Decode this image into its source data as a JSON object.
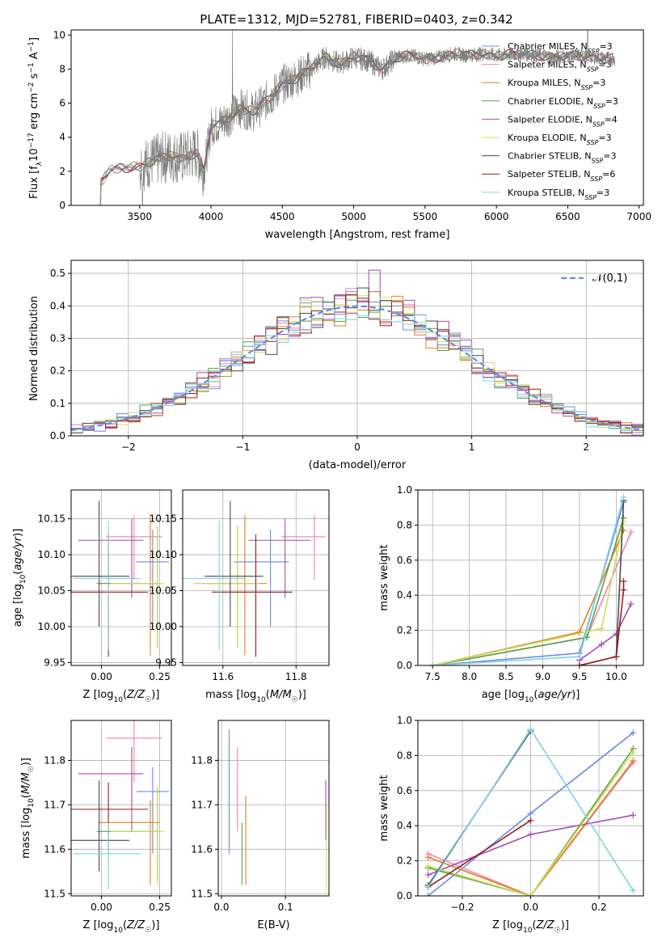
{
  "title": "PLATE=1312, MJD=52781, FIBERID=0403, z=0.342",
  "colors": [
    "#6a8be0",
    "#ef86b3",
    "#e0801e",
    "#5aa04b",
    "#a54bb5",
    "#d4dc57",
    "#4a4a4a",
    "#9a1b1b",
    "#80d2e6"
  ],
  "legend": [
    {
      "label": "Chabrier MILES, N",
      "sub": "SSP",
      "tail": "=3"
    },
    {
      "label": "Salpeter MILES, N",
      "sub": "SSP",
      "tail": "=3"
    },
    {
      "label": "Kroupa MILES, N",
      "sub": "SSP",
      "tail": "=3"
    },
    {
      "label": "Chabrier ELODIE, N",
      "sub": "SSP",
      "tail": "=3"
    },
    {
      "label": "Salpeter ELODIE, N",
      "sub": "SSP",
      "tail": "=4"
    },
    {
      "label": "Kroupa ELODIE, N",
      "sub": "SSP",
      "tail": "=3"
    },
    {
      "label": "Chabrier STELIB, N",
      "sub": "SSP",
      "tail": "=3"
    },
    {
      "label": "Salpeter STELIB, N",
      "sub": "SSP",
      "tail": "=6"
    },
    {
      "label": "Kroupa STELIB, N",
      "sub": "SSP",
      "tail": "=3"
    }
  ],
  "chart_data": [
    {
      "type": "line",
      "name": "spectrum",
      "xlabel": "wavelength [Angstrom, rest frame]",
      "ylabel": "Flux [f_λ 10^-17 erg cm^-2 s^-1 A^-1]",
      "xlim": [
        3020,
        7030
      ],
      "ylim": [
        0,
        10.3
      ],
      "xticks": [
        3500,
        4000,
        4500,
        5000,
        5500,
        6000,
        6500,
        7000
      ],
      "yticks": [
        0,
        2,
        4,
        6,
        8,
        10
      ],
      "spectrum_key": [
        [
          3230,
          1.4
        ],
        [
          3300,
          2.1
        ],
        [
          3400,
          2.2
        ],
        [
          3500,
          2.3
        ],
        [
          3600,
          2.6
        ],
        [
          3700,
          2.9
        ],
        [
          3800,
          2.8
        ],
        [
          3900,
          3.1
        ],
        [
          3950,
          2.0
        ],
        [
          4000,
          4.6
        ],
        [
          4100,
          5.0
        ],
        [
          4200,
          5.7
        ],
        [
          4300,
          5.5
        ],
        [
          4400,
          6.2
        ],
        [
          4500,
          7.1
        ],
        [
          4600,
          7.5
        ],
        [
          4700,
          8.0
        ],
        [
          4800,
          8.7
        ],
        [
          4900,
          8.3
        ],
        [
          5000,
          8.7
        ],
        [
          5100,
          8.5
        ],
        [
          5200,
          8.0
        ],
        [
          5300,
          8.7
        ],
        [
          5400,
          8.8
        ],
        [
          5500,
          8.6
        ],
        [
          5600,
          8.7
        ],
        [
          5700,
          8.9
        ],
        [
          5800,
          8.8
        ],
        [
          5900,
          8.9
        ],
        [
          6000,
          8.8
        ],
        [
          6200,
          8.9
        ],
        [
          6400,
          8.7
        ],
        [
          6600,
          8.8
        ],
        [
          6800,
          8.6
        ]
      ],
      "legend_placement": "upper-right",
      "grid": false
    },
    {
      "type": "histogram",
      "name": "residuals",
      "xlabel": "(data-model)/error",
      "ylabel": "Normed distribution",
      "xlim": [
        -2.5,
        2.5
      ],
      "ylim": [
        0,
        0.54
      ],
      "xticks": [
        -2,
        -1,
        0,
        1,
        2
      ],
      "yticks": [
        0.0,
        0.1,
        0.2,
        0.3,
        0.4,
        0.5
      ],
      "reference": "𝒩(0,1)",
      "bin_width": 0.1,
      "grid": true,
      "legend_placement": "upper-right"
    },
    {
      "type": "scatter",
      "name": "age-vs-Z",
      "xlabel": "Z [log10(Z/Z☉)]",
      "ylabel": "age  [log10(age/yr)]",
      "xlim": [
        -0.13,
        0.3
      ],
      "ylim": [
        9.946,
        10.19
      ],
      "xticks": [
        0.0,
        0.25
      ],
      "yticks": [
        9.95,
        10.0,
        10.05,
        10.1,
        10.15
      ],
      "points": [
        {
          "x": 0.22,
          "y": 10.09,
          "xerr": [
            0.07,
            0.07
          ],
          "yerr": [
            0.09,
            0.045
          ]
        },
        {
          "x": 0.14,
          "y": 10.125,
          "xerr": [
            0.12,
            0.12
          ],
          "yerr": [
            0.06,
            0.03
          ]
        },
        {
          "x": 0.21,
          "y": 10.06,
          "xerr": [
            0.22,
            0.04
          ],
          "yerr": [
            0.1,
            0.095
          ]
        },
        {
          "x": 0.24,
          "y": 10.06,
          "xerr": [
            0.26,
            0.01
          ],
          "yerr": [
            0.09,
            0.08
          ]
        },
        {
          "x": 0.13,
          "y": 10.12,
          "xerr": [
            0.23,
            0.05
          ],
          "yerr": [
            0.08,
            0.03
          ]
        },
        {
          "x": 0.24,
          "y": 10.06,
          "xerr": [
            0.2,
            0.03
          ],
          "yerr": [
            0.09,
            0.08
          ]
        },
        {
          "x": -0.01,
          "y": 10.07,
          "xerr": [
            0.13,
            0.13
          ],
          "yerr": [
            0.07,
            0.105
          ]
        },
        {
          "x": 0.03,
          "y": 10.048,
          "xerr": [
            0.17,
            0.17
          ],
          "yerr": [
            0.09,
            0.08
          ]
        },
        {
          "x": 0.03,
          "y": 10.067,
          "xerr": [
            0.15,
            0.14
          ],
          "yerr": [
            0.1,
            0.08
          ]
        }
      ],
      "grid": true
    },
    {
      "type": "scatter",
      "name": "age-vs-mass",
      "xlabel": "mass [log10(M/M☉)]",
      "ylabel": "",
      "xlim": [
        11.49,
        11.89
      ],
      "ylim": [
        9.946,
        10.19
      ],
      "xticks": [
        11.6,
        11.8
      ],
      "yticks": [
        9.95,
        10.0,
        10.05,
        10.1,
        10.15
      ],
      "points": [
        {
          "x": 11.73,
          "y": 10.09,
          "xerr": [
            0.1,
            0.05
          ],
          "yerr": [
            0.09,
            0.045
          ]
        },
        {
          "x": 11.85,
          "y": 10.125,
          "xerr": [
            0.09,
            0.03
          ],
          "yerr": [
            0.06,
            0.03
          ]
        },
        {
          "x": 11.66,
          "y": 10.06,
          "xerr": [
            0.11,
            0.06
          ],
          "yerr": [
            0.1,
            0.095
          ]
        },
        {
          "x": 11.64,
          "y": 10.06,
          "xerr": [
            0.12,
            0.04
          ],
          "yerr": [
            0.09,
            0.08
          ]
        },
        {
          "x": 11.77,
          "y": 10.12,
          "xerr": [
            0.1,
            0.07
          ],
          "yerr": [
            0.08,
            0.03
          ]
        },
        {
          "x": 11.64,
          "y": 10.06,
          "xerr": [
            0.12,
            0.06
          ],
          "yerr": [
            0.09,
            0.08
          ]
        },
        {
          "x": 11.62,
          "y": 10.07,
          "xerr": [
            0.07,
            0.09
          ],
          "yerr": [
            0.07,
            0.105
          ]
        },
        {
          "x": 11.69,
          "y": 10.048,
          "xerr": [
            0.12,
            0.1
          ],
          "yerr": [
            0.09,
            0.08
          ]
        },
        {
          "x": 11.59,
          "y": 10.067,
          "xerr": [
            0.1,
            0.07
          ],
          "yerr": [
            0.1,
            0.08
          ]
        }
      ],
      "grid": true
    },
    {
      "type": "line",
      "name": "mass-weight-vs-age",
      "xlabel": "age  [log10(age/yr)]",
      "ylabel": "mass weight",
      "xlim": [
        7.3,
        10.37
      ],
      "ylim": [
        0,
        1
      ],
      "xticks": [
        7.5,
        8.0,
        8.5,
        9.0,
        9.5,
        10.0
      ],
      "yticks": [
        0.0,
        0.2,
        0.4,
        0.6,
        0.8,
        1.0
      ],
      "series": [
        {
          "x": [
            7.5,
            9.5,
            10.1
          ],
          "y": [
            0.0,
            0.07,
            0.93
          ]
        },
        {
          "x": [
            7.5,
            9.6,
            10.2
          ],
          "y": [
            0.0,
            0.16,
            0.76
          ]
        },
        {
          "x": [
            7.5,
            9.5,
            10.1
          ],
          "y": [
            0.0,
            0.19,
            0.77
          ]
        },
        {
          "x": [
            7.5,
            9.6,
            10.1
          ],
          "y": [
            0.0,
            0.16,
            0.84
          ]
        },
        {
          "x": [
            9.5,
            9.8,
            10.0,
            10.2
          ],
          "y": [
            0.03,
            0.12,
            0.18,
            0.35
          ]
        },
        {
          "x": [
            7.5,
            9.8,
            10.1
          ],
          "y": [
            0.0,
            0.21,
            0.82
          ]
        },
        {
          "x": [
            9.5,
            10.0,
            10.1
          ],
          "y": [
            0.0,
            0.05,
            0.94
          ]
        },
        {
          "x": [
            9.5,
            10.0,
            10.1,
            10.1
          ],
          "y": [
            0.0,
            0.05,
            0.43,
            0.48
          ]
        },
        {
          "x": [
            7.5,
            9.5,
            10.1
          ],
          "y": [
            0.0,
            0.05,
            0.96
          ]
        }
      ],
      "grid": true
    },
    {
      "type": "scatter",
      "name": "mass-vs-Z",
      "xlabel": "Z [log10(Z/Z☉)]",
      "ylabel": "mass [log10(M/M☉)]",
      "xlim": [
        -0.13,
        0.3
      ],
      "ylim": [
        11.495,
        11.89
      ],
      "xticks": [
        0.0,
        0.25
      ],
      "yticks": [
        11.5,
        11.6,
        11.7,
        11.8
      ],
      "points": [
        {
          "x": 0.22,
          "y": 11.73,
          "xerr": [
            0.07,
            0.07
          ],
          "yerr": [
            0.14,
            0.055
          ]
        },
        {
          "x": 0.14,
          "y": 11.85,
          "xerr": [
            0.12,
            0.12
          ],
          "yerr": [
            0.1,
            0.04
          ]
        },
        {
          "x": 0.21,
          "y": 11.66,
          "xerr": [
            0.22,
            0.04
          ],
          "yerr": [
            0.14,
            0.05
          ]
        },
        {
          "x": 0.24,
          "y": 11.64,
          "xerr": [
            0.26,
            0.01
          ],
          "yerr": [
            0.11,
            0.1
          ]
        },
        {
          "x": 0.13,
          "y": 11.77,
          "xerr": [
            0.23,
            0.05
          ],
          "yerr": [
            0.13,
            0.06
          ]
        },
        {
          "x": 0.24,
          "y": 11.64,
          "xerr": [
            0.2,
            0.03
          ],
          "yerr": [
            0.12,
            0.1
          ]
        },
        {
          "x": -0.01,
          "y": 11.62,
          "xerr": [
            0.13,
            0.13
          ],
          "yerr": [
            0.07,
            0.135
          ]
        },
        {
          "x": 0.03,
          "y": 11.69,
          "xerr": [
            0.17,
            0.17
          ],
          "yerr": [
            0.1,
            0.06
          ]
        },
        {
          "x": 0.03,
          "y": 11.59,
          "xerr": [
            0.15,
            0.14
          ],
          "yerr": [
            0.08,
            0.07
          ]
        }
      ],
      "grid": true
    },
    {
      "type": "scatter",
      "name": "mass-vs-EBV",
      "xlabel": "E(B-V)",
      "ylabel": "",
      "xlim": [
        -0.005,
        0.168
      ],
      "ylim": [
        11.495,
        11.89
      ],
      "xticks": [
        0.0,
        0.1
      ],
      "yticks": [
        11.5,
        11.6,
        11.7,
        11.8
      ],
      "points": [
        {
          "x": 0.012,
          "y": 11.73,
          "yerr": [
            0.14,
            0.14
          ]
        },
        {
          "x": 0.025,
          "y": 11.77,
          "yerr": [
            0.13,
            0.06
          ]
        },
        {
          "x": 0.038,
          "y": 11.66,
          "yerr": [
            0.14,
            0.06
          ]
        },
        {
          "x": 0.032,
          "y": 11.6,
          "yerr": [
            0.08,
            0.06
          ]
        },
        {
          "x": 0.163,
          "y": 11.69,
          "yerr": [
            0.07,
            0.065
          ]
        },
        {
          "x": 0.164,
          "y": 11.6,
          "yerr": [
            0.1,
            0.1
          ]
        }
      ],
      "grid": true
    },
    {
      "type": "line",
      "name": "mass-weight-vs-Z",
      "xlabel": "Z [log10(Z/Z☉)]",
      "ylabel": "mass weight",
      "xlim": [
        -0.33,
        0.33
      ],
      "ylim": [
        0,
        1
      ],
      "xticks": [
        -0.2,
        0.0,
        0.2
      ],
      "yticks": [
        0.0,
        0.2,
        0.4,
        0.6,
        0.8,
        1.0
      ],
      "series": [
        {
          "x": [
            -0.3,
            0.0,
            0.3
          ],
          "y": [
            0.0,
            0.47,
            0.93
          ]
        },
        {
          "x": [
            -0.3,
            0.0,
            0.3
          ],
          "y": [
            0.24,
            0.0,
            0.76
          ]
        },
        {
          "x": [
            -0.3,
            0.0,
            0.3
          ],
          "y": [
            0.22,
            0.0,
            0.77
          ]
        },
        {
          "x": [
            -0.3,
            0.0,
            0.3
          ],
          "y": [
            0.16,
            0.0,
            0.84
          ]
        },
        {
          "x": [
            -0.3,
            0.0,
            0.3
          ],
          "y": [
            0.12,
            0.35,
            0.46
          ]
        },
        {
          "x": [
            -0.3,
            0.0,
            0.3
          ],
          "y": [
            0.17,
            0.0,
            0.82
          ]
        },
        {
          "x": [
            -0.3,
            0.0
          ],
          "y": [
            0.06,
            0.94
          ]
        },
        {
          "x": [
            -0.3,
            0.0
          ],
          "y": [
            0.05,
            0.43
          ]
        },
        {
          "x": [
            -0.3,
            0.0,
            0.3
          ],
          "y": [
            0.05,
            0.95,
            0.03
          ]
        }
      ],
      "grid": true
    }
  ]
}
